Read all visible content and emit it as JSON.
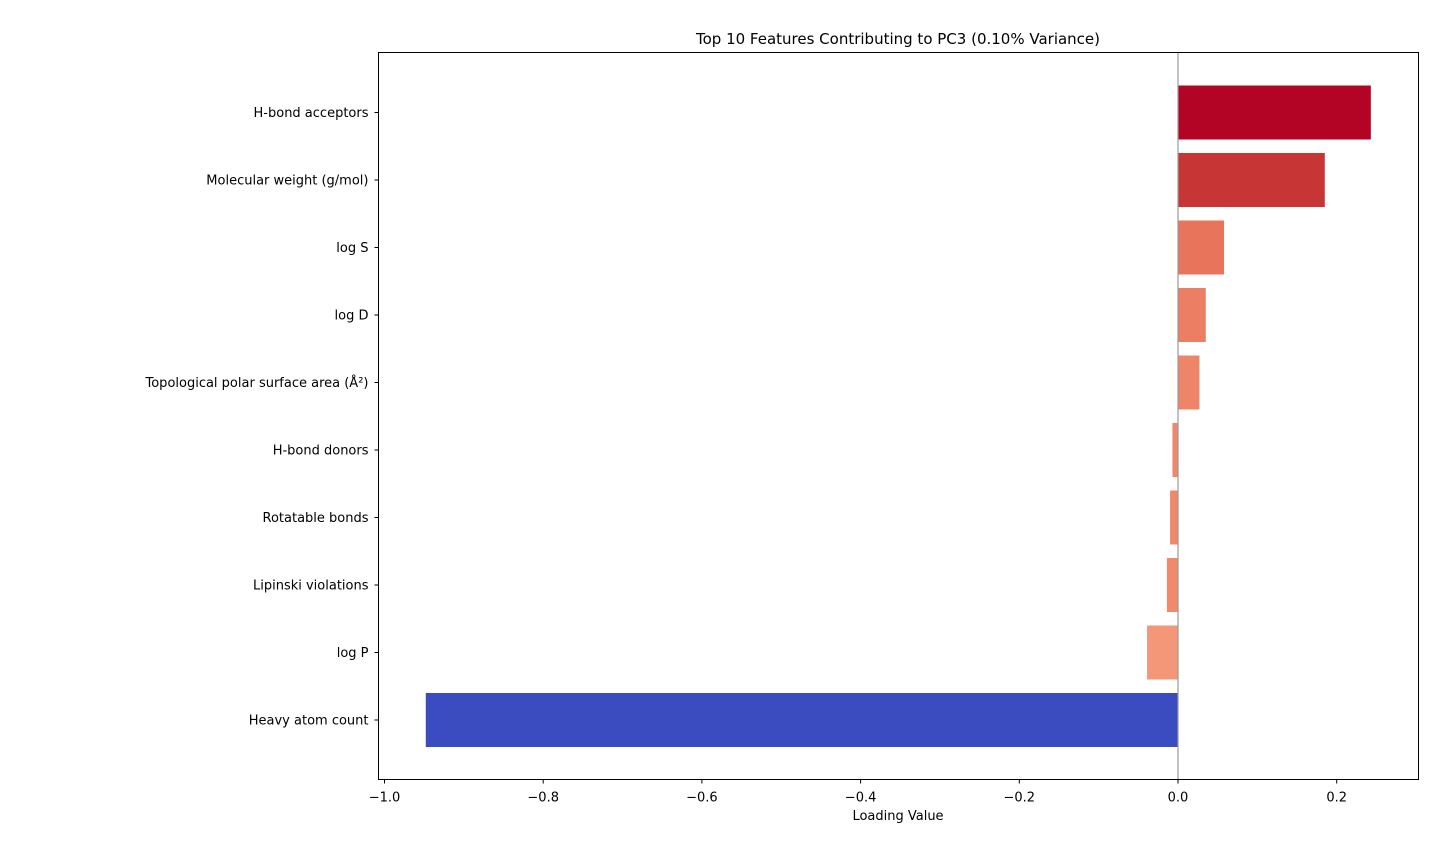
{
  "chart_data": {
    "type": "bar",
    "orientation": "horizontal",
    "title": "Top 10 Features Contributing to PC3 (0.10% Variance)",
    "xlabel": "Loading Value",
    "ylabel": "",
    "xlim": [
      -1.0,
      0.3
    ],
    "xticks": [
      -1.0,
      -0.8,
      -0.6,
      -0.4,
      -0.2,
      0.0,
      0.2
    ],
    "xtick_labels": [
      "−1.0",
      "−0.8",
      "−0.6",
      "−0.4",
      "−0.2",
      "0.0",
      "0.2"
    ],
    "categories": [
      "H-bond acceptors",
      "Molecular weight (g/mol)",
      "log S",
      "log D",
      "Topological polar surface area (Å²)",
      "H-bond donors",
      "Rotatable bonds",
      "Lipinski violations",
      "log P",
      "Heavy atom count"
    ],
    "values": [
      0.243,
      0.185,
      0.058,
      0.035,
      0.027,
      -0.007,
      -0.01,
      -0.014,
      -0.039,
      -0.948
    ],
    "colors": [
      "#b40426",
      "#c73635",
      "#e7745b",
      "#ec7f63",
      "#ee8468",
      "#ef886b",
      "#ef896c",
      "#f08a6c",
      "#f39778",
      "#3b4cc0"
    ],
    "zero_line": true,
    "grid": false,
    "legend": "none"
  }
}
